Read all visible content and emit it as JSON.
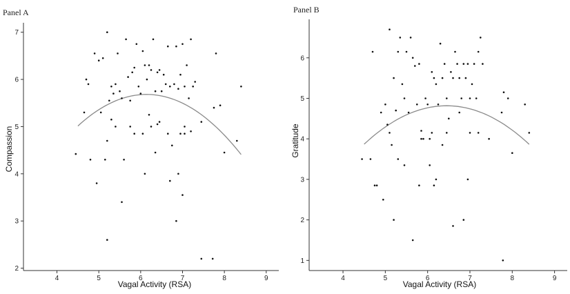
{
  "chart_data": [
    {
      "type": "scatter",
      "title": "Panel A",
      "xlabel": "Vagal Activity (RSA)",
      "ylabel": "Compassion",
      "xlim": [
        3.2,
        9.3
      ],
      "ylim": [
        1.95,
        7.2
      ],
      "xticks": [
        4,
        5,
        6,
        7,
        8,
        9
      ],
      "yticks": [
        2,
        3,
        4,
        5,
        6,
        7
      ],
      "fit": {
        "kind": "quadratic",
        "x": [
          4.5,
          5.0,
          5.5,
          6.0,
          6.5,
          7.0,
          7.5,
          8.0,
          8.4
        ],
        "y": [
          5.0,
          5.35,
          5.6,
          5.7,
          5.66,
          5.48,
          5.2,
          4.78,
          4.45
        ]
      },
      "x": [
        4.45,
        4.65,
        4.7,
        4.75,
        4.8,
        4.9,
        4.95,
        5.0,
        5.05,
        5.1,
        5.15,
        5.2,
        5.2,
        5.25,
        5.3,
        5.35,
        5.4,
        5.45,
        5.5,
        5.55,
        5.6,
        5.65,
        5.7,
        5.75,
        5.8,
        5.85,
        5.9,
        5.95,
        6.0,
        6.05,
        6.1,
        6.15,
        6.2,
        6.25,
        6.3,
        6.35,
        6.4,
        6.45,
        6.5,
        6.55,
        6.6,
        6.65,
        6.7,
        6.75,
        6.8,
        6.85,
        6.9,
        6.95,
        7.0,
        7.05,
        7.1,
        7.15,
        7.2,
        7.25,
        7.3,
        7.45,
        7.75,
        7.8,
        7.9,
        8.0,
        8.3,
        8.4,
        5.3,
        5.75,
        6.25,
        6.65,
        7.05,
        6.9,
        6.1,
        6.35,
        5.55,
        6.95,
        7.2,
        6.05,
        5.85,
        6.45,
        7.0,
        7.45,
        7.72,
        6.85,
        5.2,
        6.7,
        7.05,
        5.4,
        6.2,
        6.4
      ],
      "y": [
        4.42,
        5.3,
        6.0,
        5.9,
        4.3,
        6.55,
        3.8,
        6.4,
        5.3,
        6.45,
        4.3,
        4.7,
        7.0,
        5.55,
        5.85,
        5.7,
        5.9,
        6.55,
        5.75,
        5.6,
        4.3,
        6.85,
        6.05,
        5.55,
        6.15,
        6.25,
        6.75,
        5.85,
        5.7,
        6.6,
        6.3,
        6.0,
        6.3,
        6.2,
        6.85,
        5.75,
        6.15,
        6.2,
        5.75,
        6.1,
        5.9,
        6.7,
        5.85,
        4.6,
        5.9,
        6.7,
        5.8,
        6.1,
        6.75,
        5.85,
        6.3,
        5.6,
        6.85,
        5.85,
        5.95,
        5.1,
        5.4,
        6.55,
        5.45,
        4.45,
        4.7,
        5.85,
        5.15,
        5.0,
        5.0,
        4.85,
        4.85,
        4.0,
        4.0,
        4.45,
        3.4,
        4.85,
        4.9,
        4.85,
        4.85,
        5.1,
        3.55,
        2.2,
        2.2,
        3.0,
        2.6,
        3.85,
        5.0,
        5.0,
        5.25,
        5.05
      ]
    },
    {
      "type": "scatter",
      "title": "Panel B",
      "xlabel": "Vagal Activity (RSA)",
      "ylabel": "Gratitude",
      "xlim": [
        3.2,
        9.3
      ],
      "ylim": [
        0.75,
        6.95
      ],
      "xticks": [
        4,
        5,
        6,
        7,
        8,
        9
      ],
      "yticks": [
        1,
        2,
        3,
        4,
        5,
        6
      ],
      "fit": {
        "kind": "quadratic",
        "x": [
          4.5,
          5.0,
          5.5,
          6.0,
          6.5,
          7.0,
          7.5,
          8.0,
          8.4
        ],
        "y": [
          3.85,
          4.3,
          4.6,
          4.78,
          4.84,
          4.75,
          4.5,
          4.15,
          3.93
        ]
      },
      "x": [
        4.45,
        4.65,
        4.7,
        4.75,
        4.8,
        4.9,
        4.95,
        5.0,
        5.05,
        5.1,
        5.15,
        5.2,
        5.25,
        5.3,
        5.35,
        5.4,
        5.45,
        5.5,
        5.55,
        5.6,
        5.65,
        5.7,
        5.75,
        5.8,
        5.85,
        5.9,
        5.95,
        6.0,
        6.05,
        6.1,
        6.15,
        6.2,
        6.25,
        6.3,
        6.35,
        6.4,
        6.45,
        6.5,
        6.55,
        6.6,
        6.65,
        6.7,
        6.75,
        6.8,
        6.85,
        6.9,
        6.95,
        7.0,
        7.05,
        7.1,
        7.15,
        7.2,
        7.25,
        7.3,
        7.45,
        7.75,
        7.8,
        7.9,
        8.0,
        8.3,
        8.4,
        5.1,
        5.3,
        5.45,
        5.8,
        6.05,
        6.2,
        6.35,
        6.6,
        6.85,
        7.0,
        5.2,
        6.1,
        6.75,
        7.2,
        5.85,
        6.45,
        7.78,
        6.95,
        5.65,
        6.15
      ],
      "y": [
        3.5,
        3.5,
        6.15,
        2.85,
        2.85,
        4.65,
        2.5,
        4.85,
        4.35,
        6.7,
        3.85,
        5.5,
        4.7,
        6.15,
        6.5,
        5.35,
        5.0,
        6.15,
        4.65,
        6.5,
        6.0,
        5.8,
        4.85,
        5.85,
        4.2,
        4.0,
        5.0,
        4.85,
        4.0,
        5.65,
        5.5,
        5.35,
        4.85,
        6.35,
        5.5,
        5.85,
        5.0,
        4.5,
        5.65,
        5.5,
        6.15,
        5.85,
        5.5,
        5.0,
        5.85,
        5.5,
        5.85,
        5.0,
        5.35,
        5.85,
        5.0,
        6.15,
        6.5,
        5.85,
        4.0,
        4.65,
        5.15,
        5.0,
        3.65,
        4.85,
        4.15,
        4.15,
        3.5,
        3.35,
        2.85,
        3.35,
        3.0,
        3.85,
        1.85,
        2.0,
        4.15,
        2.0,
        4.15,
        4.65,
        4.15,
        4.0,
        4.15,
        1.0,
        3.0,
        1.5,
        2.85
      ]
    }
  ]
}
